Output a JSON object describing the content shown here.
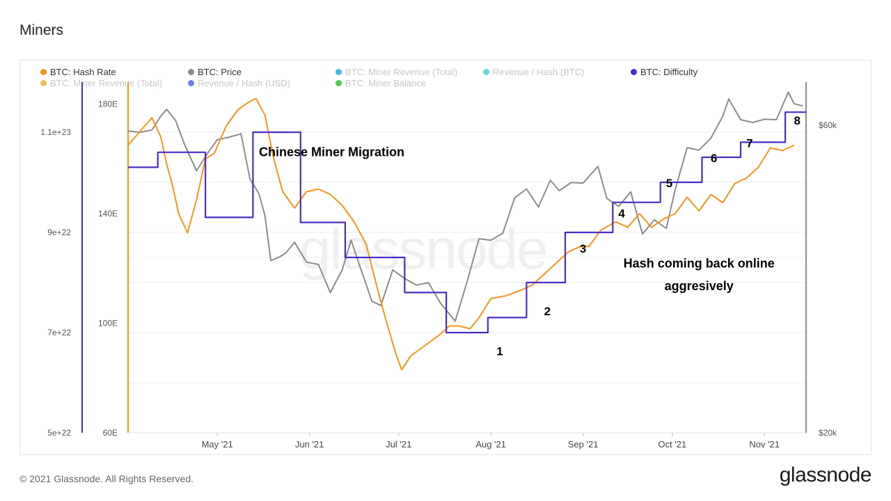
{
  "page": {
    "title": "Miners",
    "copyright": "© 2021 Glassnode. All Rights Reserved.",
    "brand": "glassnode",
    "watermark": "glassnode"
  },
  "legend": [
    {
      "label": "BTC: Hash Rate",
      "color": "#f7931a",
      "active": true
    },
    {
      "label": "BTC: Price",
      "color": "#8c8c8c",
      "active": true
    },
    {
      "label": "BTC: Miner Revenue (Total)",
      "color": "#29b6d6",
      "active": false
    },
    {
      "label": "Revenue / Hash (BTC)",
      "color": "#4dd8d8",
      "active": false
    },
    {
      "label": "BTC: Difficulty",
      "color": "#4b2bc2",
      "active": true
    },
    {
      "label": "BTC: Miner Revenue (Total)",
      "color": "#e6b84a",
      "active": false
    },
    {
      "label": "Revenue / Hash (USD)",
      "color": "#5b6ef5",
      "active": false
    },
    {
      "label": "BTC: Miner Balance",
      "color": "#3ec23e",
      "active": false
    }
  ],
  "chart_data": {
    "type": "line",
    "title": "Miners",
    "x_ticks": [
      "May '21",
      "Jun '21",
      "Jul '21",
      "Aug '21",
      "Sep '21",
      "Oct '21",
      "Nov '21"
    ],
    "x_range": [
      "2021-04-01",
      "2021-11-15"
    ],
    "axes": {
      "difficulty": {
        "ticks": [
          "5e+22",
          "7e+22",
          "9e+22",
          "1.1e+23"
        ],
        "range": [
          5e+22,
          1.2e+23
        ]
      },
      "hash_rate": {
        "ticks": [
          "60E",
          "100E",
          "140E",
          "180E"
        ],
        "range": [
          60,
          188
        ]
      },
      "price": {
        "ticks": [
          "$20k",
          "$60k"
        ],
        "scale": "log",
        "range": [
          20000,
          70000
        ]
      }
    },
    "series": [
      {
        "name": "BTC: Hash Rate",
        "unit": "E",
        "color": "#f7931a",
        "points": [
          [
            "2021-04-01",
            165
          ],
          [
            "2021-04-05",
            170
          ],
          [
            "2021-04-09",
            175
          ],
          [
            "2021-04-12",
            168
          ],
          [
            "2021-04-14",
            158
          ],
          [
            "2021-04-16",
            150
          ],
          [
            "2021-04-18",
            140
          ],
          [
            "2021-04-21",
            133
          ],
          [
            "2021-04-24",
            145
          ],
          [
            "2021-04-27",
            160
          ],
          [
            "2021-04-30",
            162
          ],
          [
            "2021-05-04",
            172
          ],
          [
            "2021-05-08",
            178
          ],
          [
            "2021-05-12",
            181
          ],
          [
            "2021-05-14",
            182
          ],
          [
            "2021-05-17",
            176
          ],
          [
            "2021-05-20",
            160
          ],
          [
            "2021-05-23",
            148
          ],
          [
            "2021-05-27",
            142
          ],
          [
            "2021-05-31",
            148
          ],
          [
            "2021-06-04",
            149
          ],
          [
            "2021-06-08",
            147
          ],
          [
            "2021-06-12",
            143
          ],
          [
            "2021-06-16",
            137
          ],
          [
            "2021-06-20",
            129
          ],
          [
            "2021-06-24",
            112
          ],
          [
            "2021-06-27",
            100
          ],
          [
            "2021-06-30",
            89
          ],
          [
            "2021-07-02",
            83
          ],
          [
            "2021-07-05",
            88
          ],
          [
            "2021-07-10",
            92
          ],
          [
            "2021-07-15",
            96
          ],
          [
            "2021-07-18",
            99
          ],
          [
            "2021-07-21",
            99
          ],
          [
            "2021-07-25",
            98
          ],
          [
            "2021-07-28",
            102
          ],
          [
            "2021-08-01",
            109
          ],
          [
            "2021-08-06",
            110
          ],
          [
            "2021-08-11",
            112
          ],
          [
            "2021-08-15",
            114
          ],
          [
            "2021-08-19",
            118
          ],
          [
            "2021-08-23",
            122
          ],
          [
            "2021-08-27",
            126
          ],
          [
            "2021-08-31",
            128
          ],
          [
            "2021-09-03",
            128
          ],
          [
            "2021-09-07",
            134
          ],
          [
            "2021-09-12",
            137
          ],
          [
            "2021-09-16",
            135
          ],
          [
            "2021-09-20",
            140
          ],
          [
            "2021-09-24",
            135
          ],
          [
            "2021-09-28",
            138
          ],
          [
            "2021-10-02",
            140
          ],
          [
            "2021-10-06",
            146
          ],
          [
            "2021-10-10",
            141
          ],
          [
            "2021-10-14",
            147
          ],
          [
            "2021-10-18",
            144
          ],
          [
            "2021-10-22",
            151
          ],
          [
            "2021-10-26",
            153
          ],
          [
            "2021-10-30",
            157
          ],
          [
            "2021-11-03",
            164
          ],
          [
            "2021-11-07",
            163
          ],
          [
            "2021-11-11",
            165
          ]
        ]
      },
      {
        "name": "BTC: Price",
        "unit": "USD",
        "color": "#8c8c8c",
        "points": [
          [
            "2021-04-01",
            58800
          ],
          [
            "2021-04-05",
            58500
          ],
          [
            "2021-04-09",
            59000
          ],
          [
            "2021-04-12",
            62000
          ],
          [
            "2021-04-14",
            63500
          ],
          [
            "2021-04-17",
            61000
          ],
          [
            "2021-04-20",
            56000
          ],
          [
            "2021-04-24",
            51000
          ],
          [
            "2021-04-28",
            54500
          ],
          [
            "2021-05-01",
            57000
          ],
          [
            "2021-05-05",
            57500
          ],
          [
            "2021-05-09",
            58200
          ],
          [
            "2021-05-12",
            49500
          ],
          [
            "2021-05-15",
            47000
          ],
          [
            "2021-05-17",
            43500
          ],
          [
            "2021-05-19",
            37000
          ],
          [
            "2021-05-22",
            37500
          ],
          [
            "2021-05-24",
            38000
          ],
          [
            "2021-05-27",
            39500
          ],
          [
            "2021-05-31",
            36800
          ],
          [
            "2021-06-04",
            36500
          ],
          [
            "2021-06-08",
            33000
          ],
          [
            "2021-06-12",
            35800
          ],
          [
            "2021-06-15",
            39800
          ],
          [
            "2021-06-18",
            36200
          ],
          [
            "2021-06-22",
            32000
          ],
          [
            "2021-06-25",
            31500
          ],
          [
            "2021-06-29",
            35800
          ],
          [
            "2021-07-03",
            34700
          ],
          [
            "2021-07-07",
            33900
          ],
          [
            "2021-07-11",
            34200
          ],
          [
            "2021-07-15",
            31800
          ],
          [
            "2021-07-20",
            29800
          ],
          [
            "2021-07-24",
            34300
          ],
          [
            "2021-07-28",
            40000
          ],
          [
            "2021-08-01",
            39800
          ],
          [
            "2021-08-05",
            40800
          ],
          [
            "2021-08-09",
            46300
          ],
          [
            "2021-08-13",
            47800
          ],
          [
            "2021-08-17",
            44800
          ],
          [
            "2021-08-21",
            49300
          ],
          [
            "2021-08-24",
            47500
          ],
          [
            "2021-08-28",
            48900
          ],
          [
            "2021-09-01",
            48800
          ],
          [
            "2021-09-06",
            51800
          ],
          [
            "2021-09-09",
            46200
          ],
          [
            "2021-09-13",
            44900
          ],
          [
            "2021-09-17",
            47300
          ],
          [
            "2021-09-21",
            40700
          ],
          [
            "2021-09-25",
            42800
          ],
          [
            "2021-09-29",
            41500
          ],
          [
            "2021-10-02",
            47700
          ],
          [
            "2021-10-06",
            55400
          ],
          [
            "2021-10-10",
            54900
          ],
          [
            "2021-10-14",
            57300
          ],
          [
            "2021-10-18",
            62000
          ],
          [
            "2021-10-20",
            65900
          ],
          [
            "2021-10-24",
            61200
          ],
          [
            "2021-10-28",
            60600
          ],
          [
            "2021-11-01",
            61300
          ],
          [
            "2021-11-05",
            61200
          ],
          [
            "2021-11-09",
            67500
          ],
          [
            "2021-11-11",
            64800
          ],
          [
            "2021-11-14",
            64300
          ]
        ]
      },
      {
        "name": "BTC: Difficulty",
        "unit": "",
        "color": "#4b2bc2",
        "step": true,
        "points": [
          [
            "2021-04-01",
            1.03e+23
          ],
          [
            "2021-04-11",
            1.03e+23
          ],
          [
            "2021-04-11",
            1.06e+23
          ],
          [
            "2021-04-27",
            1.06e+23
          ],
          [
            "2021-04-27",
            9.3e+22
          ],
          [
            "2021-05-13",
            9.3e+22
          ],
          [
            "2021-05-13",
            1.1e+23
          ],
          [
            "2021-05-29",
            1.1e+23
          ],
          [
            "2021-05-29",
            9.2e+22
          ],
          [
            "2021-06-13",
            9.2e+22
          ],
          [
            "2021-06-13",
            8.5e+22
          ],
          [
            "2021-07-03",
            8.5e+22
          ],
          [
            "2021-07-03",
            7.8e+22
          ],
          [
            "2021-07-17",
            7.8e+22
          ],
          [
            "2021-07-17",
            7e+22
          ],
          [
            "2021-07-31",
            7e+22
          ],
          [
            "2021-07-31",
            7.3e+22
          ],
          [
            "2021-08-13",
            7.3e+22
          ],
          [
            "2021-08-13",
            8e+22
          ],
          [
            "2021-08-26",
            8e+22
          ],
          [
            "2021-08-26",
            9e+22
          ],
          [
            "2021-09-11",
            9e+22
          ],
          [
            "2021-09-11",
            9.6e+22
          ],
          [
            "2021-09-27",
            9.6e+22
          ],
          [
            "2021-09-27",
            1e+23
          ],
          [
            "2021-10-11",
            1e+23
          ],
          [
            "2021-10-11",
            1.05e+23
          ],
          [
            "2021-10-24",
            1.05e+23
          ],
          [
            "2021-10-24",
            1.08e+23
          ],
          [
            "2021-11-08",
            1.08e+23
          ],
          [
            "2021-11-08",
            1.14e+23
          ],
          [
            "2021-11-15",
            1.14e+23
          ]
        ]
      }
    ],
    "annotations": [
      {
        "text": "Chinese Miner Migration",
        "x": "2021-05-15",
        "axis": "hash_rate",
        "y": 161
      },
      {
        "text": "1",
        "x": "2021-08-04",
        "axis": "difficulty",
        "y": 6.55e+22
      },
      {
        "text": "2",
        "x": "2021-08-20",
        "axis": "difficulty",
        "y": 7.35e+22
      },
      {
        "text": "3",
        "x": "2021-09-01",
        "axis": "difficulty",
        "y": 8.6e+22
      },
      {
        "text": "4",
        "x": "2021-09-14",
        "axis": "difficulty",
        "y": 9.3e+22
      },
      {
        "text": "5",
        "x": "2021-09-30",
        "axis": "difficulty",
        "y": 9.9e+22
      },
      {
        "text": "6",
        "x": "2021-10-15",
        "axis": "difficulty",
        "y": 1.04e+23
      },
      {
        "text": "7",
        "x": "2021-10-27",
        "axis": "difficulty",
        "y": 1.07e+23
      },
      {
        "text": "8",
        "x": "2021-11-12",
        "axis": "difficulty",
        "y": 1.115e+23
      },
      {
        "text": "Hash coming back online",
        "x": "2021-10-10",
        "axis": "difficulty",
        "y": 8.3e+22
      },
      {
        "text": "aggresively",
        "x": "2021-10-10",
        "axis": "difficulty",
        "y": 7.85e+22
      }
    ]
  }
}
